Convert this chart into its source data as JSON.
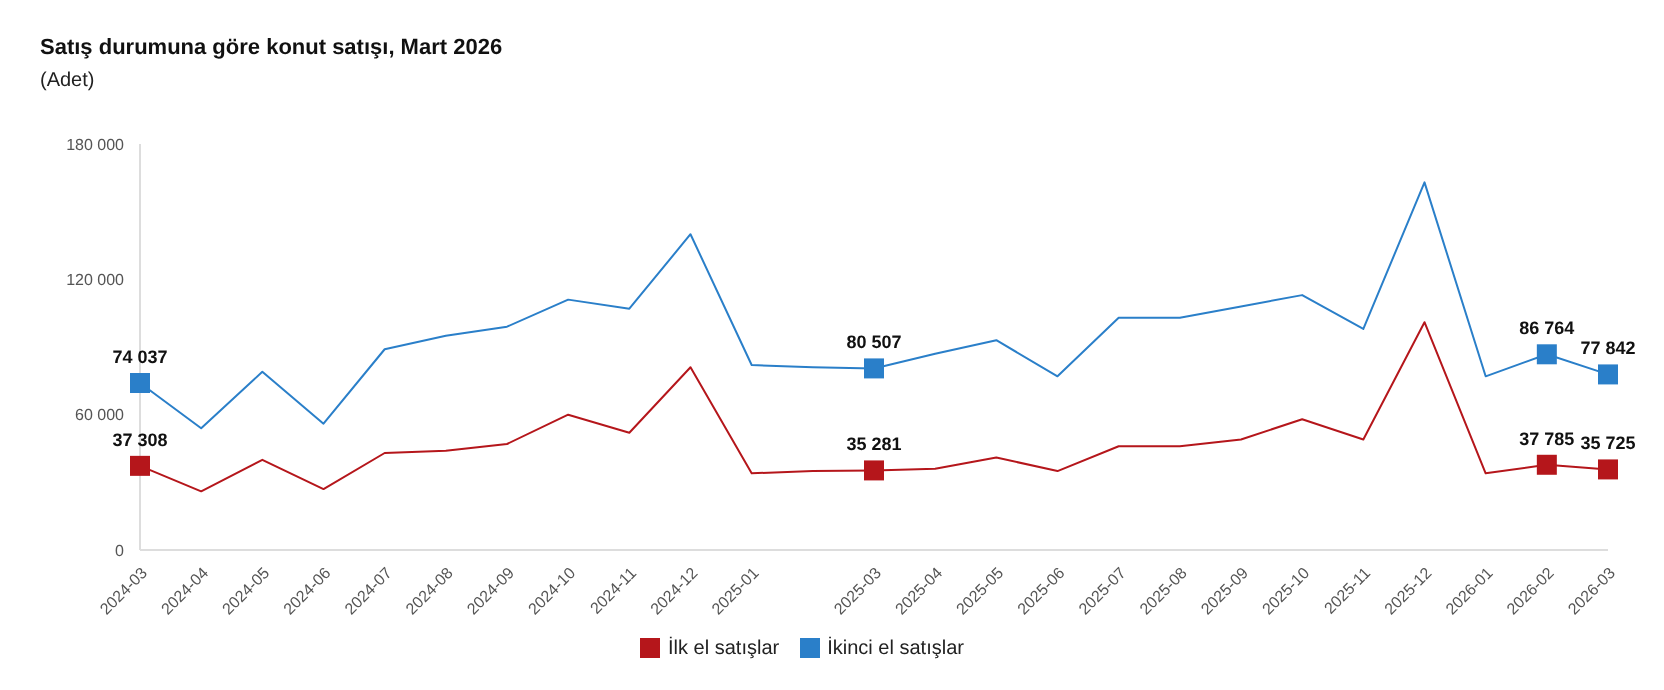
{
  "chart_data": {
    "type": "line",
    "title": "Satış durumuna göre konut satışı, Mart 2026",
    "subtitle": "(Adet)",
    "categories": [
      "2024-03",
      "2024-04",
      "2024-05",
      "2024-06",
      "2024-07",
      "2024-08",
      "2024-09",
      "2024-10",
      "2024-11",
      "2024-12",
      "2025-01",
      null,
      "2025-03",
      "2025-04",
      "2025-05",
      "2025-06",
      "2025-07",
      "2025-08",
      "2025-09",
      "2025-10",
      "2025-11",
      "2025-12",
      "2026-01",
      "2026-02",
      "2026-03"
    ],
    "series": [
      {
        "name": "İlk el satışlar",
        "color": "#b5161b",
        "values": [
          37308,
          26000,
          40000,
          27000,
          43000,
          44000,
          47000,
          60000,
          52000,
          81000,
          34000,
          35000,
          35281,
          36000,
          41000,
          35000,
          46000,
          46000,
          49000,
          58000,
          49000,
          101000,
          34000,
          37785,
          35725
        ],
        "value_labels": [
          "37 308",
          null,
          null,
          null,
          null,
          null,
          null,
          null,
          null,
          null,
          null,
          null,
          "35 281",
          null,
          null,
          null,
          null,
          null,
          null,
          null,
          null,
          null,
          null,
          "37 785",
          "35 725"
        ]
      },
      {
        "name": "İkinci el satışlar",
        "color": "#2a7fc9",
        "values": [
          74037,
          54000,
          79000,
          56000,
          89000,
          95000,
          99000,
          111000,
          107000,
          140000,
          82000,
          81000,
          80507,
          87000,
          93000,
          77000,
          103000,
          103000,
          108000,
          113000,
          98000,
          163000,
          77000,
          86764,
          77842
        ],
        "value_labels": [
          "74 037",
          null,
          null,
          null,
          null,
          null,
          null,
          null,
          null,
          null,
          null,
          null,
          "80 507",
          null,
          null,
          null,
          null,
          null,
          null,
          null,
          null,
          null,
          null,
          "86 764",
          "77 842"
        ]
      }
    ],
    "ylim": [
      0,
      180000
    ],
    "yticks": [
      0,
      60000,
      120000,
      180000
    ],
    "grid": false,
    "legend": "bottom",
    "line_style": "solid"
  }
}
